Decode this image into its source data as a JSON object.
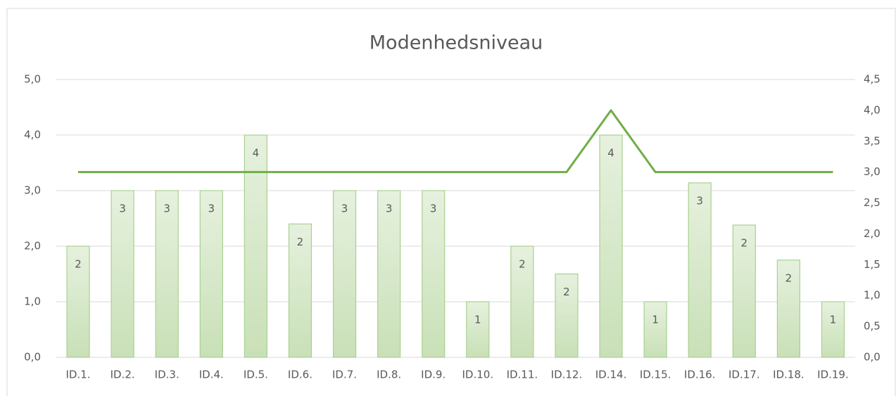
{
  "chart_data": {
    "type": "bar-line",
    "title": "Modenhedsniveau",
    "categories": [
      "ID.1.",
      "ID.2.",
      "ID.3.",
      "ID.4.",
      "ID.5.",
      "ID.6.",
      "ID.7.",
      "ID.8.",
      "ID.9.",
      "ID.10.",
      "ID.11.",
      "ID.12.",
      "ID.14.",
      "ID.15.",
      "ID.16.",
      "ID.17.",
      "ID.18.",
      "ID.19."
    ],
    "series": [
      {
        "type": "bar",
        "color": "#a9d18e",
        "values": [
          2,
          3,
          3,
          3,
          4,
          2.4,
          3,
          3,
          3,
          1,
          2,
          1.5,
          4,
          1,
          3.14,
          2.38,
          1.75,
          1
        ],
        "value_labels": [
          "2",
          "3",
          "3",
          "3",
          "4",
          "2",
          "3",
          "3",
          "3",
          "1",
          "2",
          "2",
          "4",
          "1",
          "3",
          "2",
          "2",
          "1"
        ]
      },
      {
        "type": "line",
        "axis": "y2",
        "color": "#70ad47",
        "values": [
          3,
          3,
          3,
          3,
          3,
          3,
          3,
          3,
          3,
          3,
          3,
          3,
          4,
          3,
          3,
          3,
          3,
          3
        ]
      }
    ],
    "ylim": [
      0,
      5
    ],
    "yticks": [
      {
        "value": 0,
        "label": "0,0"
      },
      {
        "value": 1,
        "label": "1,0"
      },
      {
        "value": 2,
        "label": "2,0"
      },
      {
        "value": 3,
        "label": "3,0"
      },
      {
        "value": 4,
        "label": "4,0"
      },
      {
        "value": 5,
        "label": "5,0"
      }
    ],
    "y2lim": [
      0,
      4.5
    ],
    "y2ticks": [
      {
        "value": 0,
        "label": "0,0"
      },
      {
        "value": 0.5,
        "label": "0,5"
      },
      {
        "value": 1,
        "label": "1,0"
      },
      {
        "value": 1.5,
        "label": "1,5"
      },
      {
        "value": 2,
        "label": "2,0"
      },
      {
        "value": 2.5,
        "label": "2,5"
      },
      {
        "value": 3,
        "label": "3,0"
      },
      {
        "value": 3.5,
        "label": "3,5"
      },
      {
        "value": 4,
        "label": "4,0"
      },
      {
        "value": 4.5,
        "label": "4,5"
      }
    ],
    "grid": true
  }
}
